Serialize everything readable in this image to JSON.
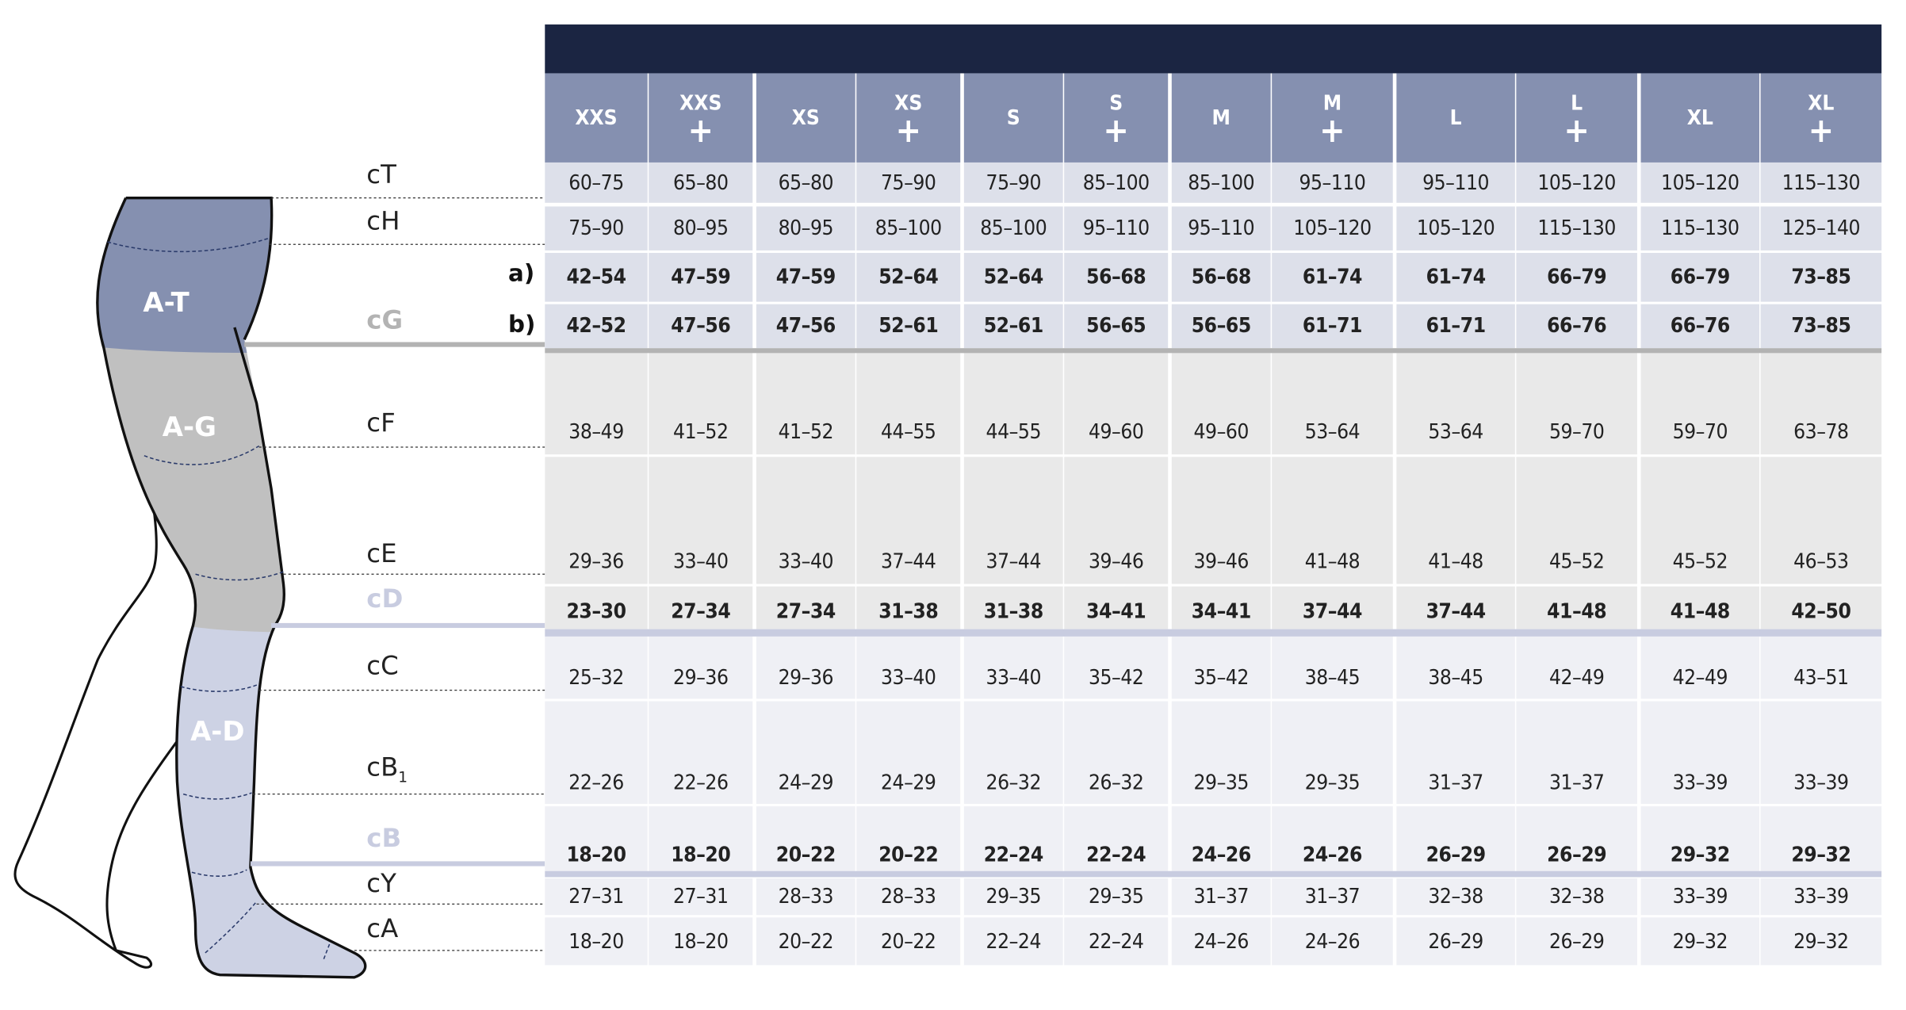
{
  "zones": {
    "thigh_top": "A-T",
    "thigh": "A-G",
    "calf": "A-D"
  },
  "measure_labels": [
    {
      "id": "cT",
      "text": "cT"
    },
    {
      "id": "cH",
      "text": "cH"
    },
    {
      "id": "cG",
      "text": "cG"
    },
    {
      "id": "cF",
      "text": "cF"
    },
    {
      "id": "cE",
      "text": "cE"
    },
    {
      "id": "cD",
      "text": "cD"
    },
    {
      "id": "cC",
      "text": "cC"
    },
    {
      "id": "cB1",
      "text": "cB",
      "sub": "1"
    },
    {
      "id": "cB",
      "text": "cB"
    },
    {
      "id": "cY",
      "text": "cY"
    },
    {
      "id": "cA",
      "text": "cA"
    }
  ],
  "variant_labels": {
    "a": "a)",
    "b": "b)"
  },
  "header": [
    {
      "size": "XXS",
      "plus": false
    },
    {
      "size": "XXS",
      "plus": true
    },
    {
      "size": "XS",
      "plus": false
    },
    {
      "size": "XS",
      "plus": true
    },
    {
      "size": "S",
      "plus": false
    },
    {
      "size": "S",
      "plus": true
    },
    {
      "size": "M",
      "plus": false
    },
    {
      "size": "M",
      "plus": true
    },
    {
      "size": "L",
      "plus": false
    },
    {
      "size": "L",
      "plus": true
    },
    {
      "size": "XL",
      "plus": false
    },
    {
      "size": "XL",
      "plus": true
    }
  ],
  "plus_symbol": "+",
  "rows": [
    {
      "id": "cT",
      "bold": false,
      "values": [
        "60–75",
        "65–80",
        "65–80",
        "75–90",
        "75–90",
        "85–100",
        "85–100",
        "95–110",
        "95–110",
        "105–120",
        "105–120",
        "115–130"
      ]
    },
    {
      "id": "cH",
      "bold": false,
      "values": [
        "75–90",
        "80–95",
        "80–95",
        "85–100",
        "85–100",
        "95–110",
        "95–110",
        "105–120",
        "105–120",
        "115–130",
        "115–130",
        "125–140"
      ]
    },
    {
      "id": "cG-a",
      "bold": true,
      "values": [
        "42–54",
        "47–59",
        "47–59",
        "52–64",
        "52–64",
        "56–68",
        "56–68",
        "61–74",
        "61–74",
        "66–79",
        "66–79",
        "73–85"
      ]
    },
    {
      "id": "cG-b",
      "bold": true,
      "values": [
        "42–52",
        "47–56",
        "47–56",
        "52–61",
        "52–61",
        "56–65",
        "56–65",
        "61–71",
        "61–71",
        "66–76",
        "66–76",
        "73–85"
      ]
    },
    {
      "id": "cF",
      "bold": false,
      "values": [
        "38–49",
        "41–52",
        "41–52",
        "44–55",
        "44–55",
        "49–60",
        "49–60",
        "53–64",
        "53–64",
        "59–70",
        "59–70",
        "63–78"
      ]
    },
    {
      "id": "cE",
      "bold": false,
      "values": [
        "29–36",
        "33–40",
        "33–40",
        "37–44",
        "37–44",
        "39–46",
        "39–46",
        "41–48",
        "41–48",
        "45–52",
        "45–52",
        "46–53"
      ]
    },
    {
      "id": "cD",
      "bold": true,
      "values": [
        "23–30",
        "27–34",
        "27–34",
        "31–38",
        "31–38",
        "34–41",
        "34–41",
        "37–44",
        "37–44",
        "41–48",
        "41–48",
        "42–50"
      ]
    },
    {
      "id": "cC",
      "bold": false,
      "values": [
        "25–32",
        "29–36",
        "29–36",
        "33–40",
        "33–40",
        "35–42",
        "35–42",
        "38–45",
        "38–45",
        "42–49",
        "42–49",
        "43–51"
      ]
    },
    {
      "id": "cB1",
      "bold": false,
      "values": [
        "22–26",
        "22–26",
        "24–29",
        "24–29",
        "26–32",
        "26–32",
        "29–35",
        "29–35",
        "31–37",
        "31–37",
        "33–39",
        "33–39"
      ]
    },
    {
      "id": "cB",
      "bold": true,
      "values": [
        "18–20",
        "18–20",
        "20–22",
        "20–22",
        "22–24",
        "22–24",
        "24–26",
        "24–26",
        "26–29",
        "26–29",
        "29–32",
        "29–32"
      ]
    },
    {
      "id": "cY",
      "bold": false,
      "values": [
        "27–31",
        "27–31",
        "28–33",
        "28–33",
        "29–35",
        "29–35",
        "31–37",
        "31–37",
        "32–38",
        "32–38",
        "33–39",
        "33–39"
      ]
    },
    {
      "id": "cA",
      "bold": false,
      "values": [
        "18–20",
        "18–20",
        "20–22",
        "20–22",
        "22–24",
        "22–24",
        "24–26",
        "24–26",
        "26–29",
        "26–29",
        "29–32",
        "29–32"
      ]
    }
  ],
  "colors": {
    "header_dark": "#1b2542",
    "header": "#8590b0",
    "zone_t": "#8590b0",
    "zone_g": "#c0c0c0",
    "zone_d": "#cdd2e4",
    "band_top": "#dde0ea",
    "band_mid": "#e9e9e9",
    "band_low": "#eff0f5"
  }
}
